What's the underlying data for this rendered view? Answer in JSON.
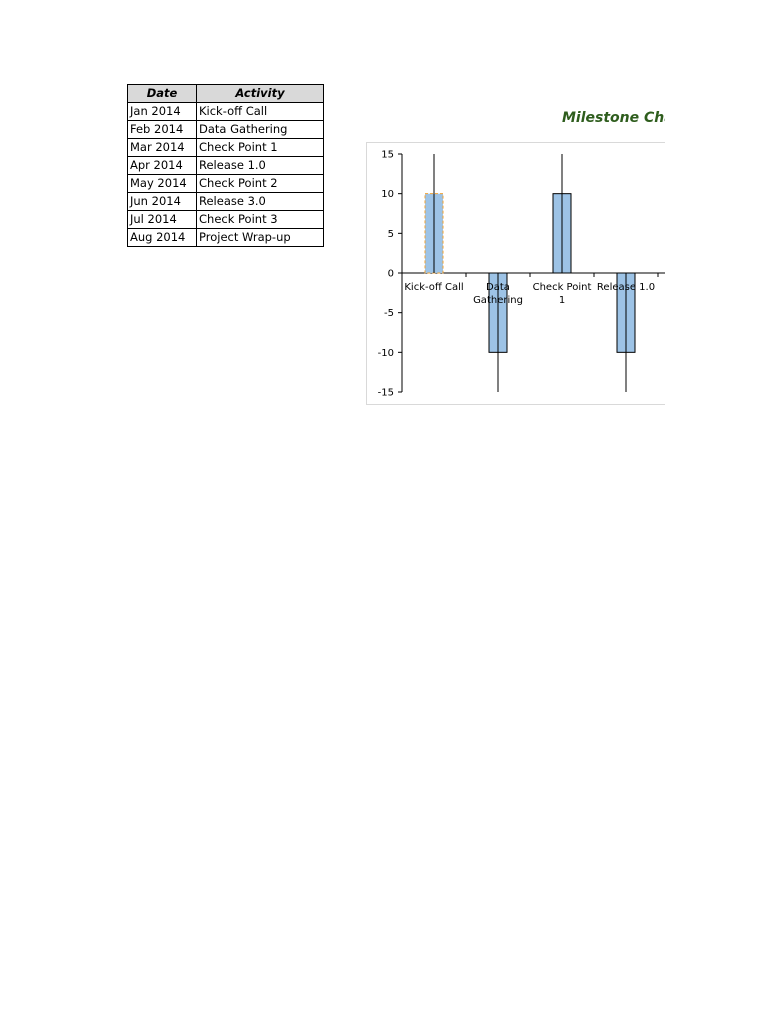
{
  "table": {
    "headers": {
      "date": "Date",
      "activity": "Activity"
    },
    "rows": [
      {
        "date": "Jan 2014",
        "activity": "Kick-off Call"
      },
      {
        "date": "Feb 2014",
        "activity": "Data Gathering"
      },
      {
        "date": "Mar 2014",
        "activity": "Check Point 1"
      },
      {
        "date": "Apr 2014",
        "activity": "Release 1.0"
      },
      {
        "date": "May 2014",
        "activity": "Check Point 2"
      },
      {
        "date": "Jun 2014",
        "activity": "Release 3.0"
      },
      {
        "date": "Jul 2014",
        "activity": "Check Point 3"
      },
      {
        "date": "Aug 2014",
        "activity": "Project Wrap-up"
      }
    ]
  },
  "chart": {
    "title": "Milestone Cha"
  },
  "chart_data": {
    "type": "bar",
    "title": "Milestone Cha",
    "xlabel": "",
    "ylabel": "",
    "ylim": [
      -15,
      15
    ],
    "yticks": [
      15,
      10,
      5,
      0,
      -5,
      -10,
      -15
    ],
    "grid": false,
    "categories": [
      "Kick-off Call",
      "Data Gathering",
      "Check Point 1",
      "Release 1.0"
    ],
    "category_label_lines": [
      [
        "Kick-off Call"
      ],
      [
        "Data",
        "Gathering"
      ],
      [
        "Check Point",
        "1"
      ],
      [
        "Release 1.0"
      ]
    ],
    "values": [
      10,
      -10,
      10,
      -10
    ],
    "error_lines": [
      15,
      -15,
      15,
      -15
    ],
    "colors": {
      "bar_fill": "#9dc3e6",
      "bar_stroke": "#000000",
      "selected_bar_stroke": "#f0a030",
      "axis": "#000000"
    },
    "selected_index": 0
  }
}
